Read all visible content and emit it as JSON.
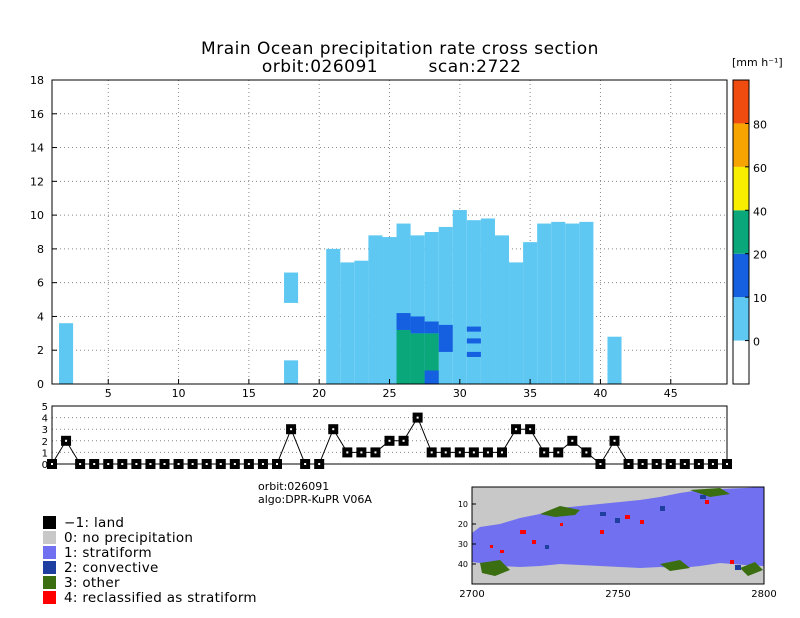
{
  "chart_data": [
    {
      "type": "heatmap",
      "name": "precipitation-cross-section",
      "title": "Mrain Ocean precipitation rate cross section",
      "subtitle_orbit": "orbit:026091",
      "subtitle_scan": "scan:2722",
      "xlabel": "",
      "ylabel": "",
      "xlim": [
        1,
        49
      ],
      "ylim": [
        0,
        18
      ],
      "xticks": [
        "5",
        "10",
        "15",
        "20",
        "25",
        "30",
        "35",
        "40",
        "45"
      ],
      "yticks": [
        "0",
        "2",
        "4",
        "6",
        "8",
        "10",
        "12",
        "14",
        "16",
        "18"
      ],
      "grid": true,
      "columns": [
        {
          "x": 2,
          "top": 3.6,
          "class": "light"
        },
        {
          "x": 18,
          "top": 6.6,
          "bottom": 4.8,
          "class": "light"
        },
        {
          "x": 18,
          "top": 1.4,
          "class": "light"
        },
        {
          "x": 21,
          "top": 8.0,
          "class": "light"
        },
        {
          "x": 22,
          "top": 7.2,
          "class": "light"
        },
        {
          "x": 23,
          "top": 7.3,
          "class": "light"
        },
        {
          "x": 24,
          "top": 8.8,
          "class": "light"
        },
        {
          "x": 25,
          "top": 8.7,
          "class": "light"
        },
        {
          "x": 26,
          "top": 9.5,
          "class": "light"
        },
        {
          "x": 27,
          "top": 8.8,
          "class": "light"
        },
        {
          "x": 28,
          "top": 9.0,
          "class": "light"
        },
        {
          "x": 29,
          "top": 9.3,
          "class": "light"
        },
        {
          "x": 30,
          "top": 10.3,
          "class": "light"
        },
        {
          "x": 31,
          "top": 9.7,
          "class": "light"
        },
        {
          "x": 32,
          "top": 9.8,
          "class": "light"
        },
        {
          "x": 33,
          "top": 8.8,
          "class": "light"
        },
        {
          "x": 34,
          "top": 7.2,
          "class": "light"
        },
        {
          "x": 35,
          "top": 8.4,
          "class": "light"
        },
        {
          "x": 36,
          "top": 9.5,
          "class": "light"
        },
        {
          "x": 37,
          "top": 9.6,
          "class": "light"
        },
        {
          "x": 38,
          "top": 9.5,
          "class": "light"
        },
        {
          "x": 39,
          "top": 9.6,
          "class": "light"
        },
        {
          "x": 41,
          "top": 2.8,
          "class": "light"
        }
      ],
      "rain_cells": [
        {
          "x": 26,
          "y0": 0,
          "y1": 3.2,
          "class": "green"
        },
        {
          "x": 27,
          "y0": 0,
          "y1": 3.0,
          "class": "green"
        },
        {
          "x": 28,
          "y0": 0,
          "y1": 3.0,
          "class": "green"
        },
        {
          "x": 26,
          "y0": 3.2,
          "y1": 4.2,
          "class": "medium"
        },
        {
          "x": 27,
          "y0": 3.0,
          "y1": 4.0,
          "class": "medium"
        },
        {
          "x": 28,
          "y0": 3.0,
          "y1": 3.7,
          "class": "medium"
        },
        {
          "x": 29,
          "y0": 1.9,
          "y1": 3.5,
          "class": "medium"
        },
        {
          "x": 28,
          "y0": 0,
          "y1": 0.8,
          "class": "medium"
        },
        {
          "x": 31,
          "y0": 3.1,
          "y1": 3.4,
          "class": "medium"
        },
        {
          "x": 31,
          "y0": 2.4,
          "y1": 2.7,
          "class": "medium"
        },
        {
          "x": 31,
          "y0": 1.6,
          "y1": 1.9,
          "class": "medium"
        }
      ],
      "colorbar": {
        "label": "[mm h⁻¹]",
        "bins": [
          {
            "lo": -10,
            "hi": 0,
            "color": "#ffffff"
          },
          {
            "lo": 0,
            "hi": 10,
            "color": "#5ec8f2"
          },
          {
            "lo": 10,
            "hi": 20,
            "color": "#1560e0"
          },
          {
            "lo": 20,
            "hi": 40,
            "color": "#0aa77a"
          },
          {
            "lo": 40,
            "hi": 60,
            "color": "#f7ee00"
          },
          {
            "lo": 60,
            "hi": 80,
            "color": "#f7a400"
          },
          {
            "lo": 80,
            "hi": 100,
            "color": "#f04c10"
          }
        ],
        "ticks": [
          "0",
          "10",
          "20",
          "40",
          "60",
          "80"
        ]
      }
    },
    {
      "type": "line",
      "name": "rain-type-strip",
      "ylim": [
        0,
        5
      ],
      "yticks": [
        "0",
        "1",
        "2",
        "3",
        "4",
        "5"
      ],
      "x": [
        1,
        2,
        3,
        4,
        5,
        6,
        7,
        8,
        9,
        10,
        11,
        12,
        13,
        14,
        15,
        16,
        17,
        18,
        19,
        20,
        21,
        22,
        23,
        24,
        25,
        26,
        27,
        28,
        29,
        30,
        31,
        32,
        33,
        34,
        35,
        36,
        37,
        38,
        39,
        40,
        41,
        42,
        43,
        44,
        45,
        46,
        47,
        48,
        49
      ],
      "values": [
        0,
        2,
        0,
        0,
        0,
        0,
        0,
        0,
        0,
        0,
        0,
        0,
        0,
        0,
        0,
        0,
        0,
        3,
        0,
        0,
        3,
        1,
        1,
        1,
        2,
        2,
        4,
        1,
        1,
        1,
        1,
        1,
        1,
        3,
        3,
        1,
        1,
        2,
        1,
        0,
        2,
        0,
        0,
        0,
        0,
        0,
        0,
        0,
        0
      ]
    },
    {
      "type": "heatmap",
      "name": "rain-type-map",
      "xticks": [
        "2700",
        "2750",
        "2800"
      ],
      "yticks": [
        "10",
        "20",
        "30",
        "40"
      ]
    }
  ],
  "info": {
    "orbit": "orbit:026091",
    "algo": "algo:DPR-KuPR V06A"
  },
  "legend": [
    {
      "label": "−1: land",
      "color": "#000000"
    },
    {
      "label": "0: no precipitation",
      "color": "#c8c8c8"
    },
    {
      "label": "1: stratiform",
      "color": "#7070f0"
    },
    {
      "label": "2: convective",
      "color": "#1f3fa0"
    },
    {
      "label": "3: other",
      "color": "#3a6e10"
    },
    {
      "label": "4: reclassified as stratiform",
      "color": "#ff0000"
    }
  ],
  "colors": {
    "light": "#5ec8f2",
    "medium": "#1560e0",
    "green": "#0aa77a",
    "grid": "#888888"
  }
}
